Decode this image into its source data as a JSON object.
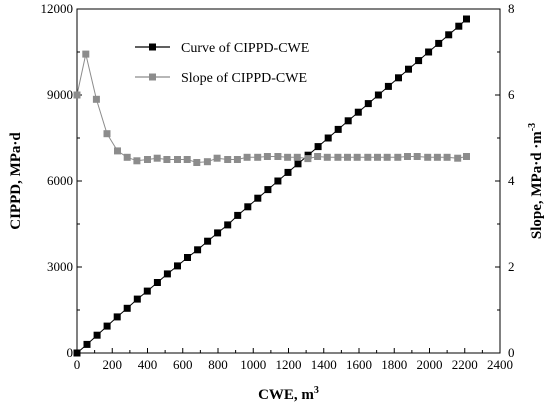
{
  "chart_data": {
    "type": "line",
    "x_axis": {
      "label": "CWE, m",
      "label_superscript": "3",
      "range": [
        0,
        2400
      ],
      "ticks": [
        "0",
        "200",
        "400",
        "600",
        "800",
        "1000",
        "1200",
        "1400",
        "1600",
        "1800",
        "2000",
        "2200",
        "2400"
      ]
    },
    "y_axis_left": {
      "label": "CIPPD, MPa·d",
      "range": [
        0,
        12000
      ],
      "ticks": [
        "0",
        "3000",
        "6000",
        "9000",
        "12000"
      ]
    },
    "y_axis_right": {
      "label": "Slope, MPa·d ·m",
      "label_superscript": "-3",
      "range": [
        0,
        8
      ],
      "ticks": [
        "0",
        "2",
        "4",
        "6",
        "8"
      ]
    },
    "legend_position": "top-left",
    "grid": false,
    "series": [
      {
        "name": "Curve of CIPPD-CWE",
        "axis": "left",
        "marker": "square",
        "color": "#000000",
        "x": [
          0,
          57,
          114,
          171,
          228,
          285,
          342,
          399,
          456,
          513,
          570,
          627,
          684,
          741,
          798,
          855,
          912,
          969,
          1026,
          1083,
          1140,
          1197,
          1254,
          1311,
          1368,
          1425,
          1482,
          1539,
          1596,
          1653,
          1710,
          1767,
          1824,
          1881,
          1938,
          1995,
          2052,
          2109,
          2166,
          2210
        ],
        "y": [
          0,
          300,
          620,
          940,
          1260,
          1560,
          1880,
          2160,
          2460,
          2760,
          3040,
          3330,
          3600,
          3900,
          4190,
          4470,
          4800,
          5100,
          5400,
          5700,
          6000,
          6300,
          6600,
          6900,
          7200,
          7500,
          7800,
          8100,
          8400,
          8700,
          9000,
          9300,
          9600,
          9900,
          10200,
          10500,
          10800,
          11100,
          11400,
          11650
        ]
      },
      {
        "name": "Slope of CIPPD-CWE",
        "axis": "right",
        "marker": "square",
        "color": "#8c8c8c",
        "x": [
          0,
          50,
          110,
          170,
          230,
          285,
          340,
          400,
          455,
          510,
          570,
          625,
          680,
          740,
          795,
          855,
          910,
          965,
          1025,
          1080,
          1140,
          1195,
          1250,
          1310,
          1365,
          1420,
          1480,
          1535,
          1590,
          1650,
          1705,
          1760,
          1820,
          1875,
          1930,
          1990,
          2045,
          2100,
          2160,
          2210
        ],
        "y": [
          6.0,
          6.95,
          5.9,
          5.1,
          4.7,
          4.55,
          4.47,
          4.5,
          4.53,
          4.5,
          4.5,
          4.5,
          4.43,
          4.45,
          4.53,
          4.5,
          4.5,
          4.55,
          4.55,
          4.57,
          4.57,
          4.55,
          4.55,
          4.52,
          4.57,
          4.55,
          4.55,
          4.55,
          4.55,
          4.55,
          4.55,
          4.55,
          4.55,
          4.57,
          4.57,
          4.55,
          4.55,
          4.55,
          4.53,
          4.57
        ]
      }
    ]
  }
}
